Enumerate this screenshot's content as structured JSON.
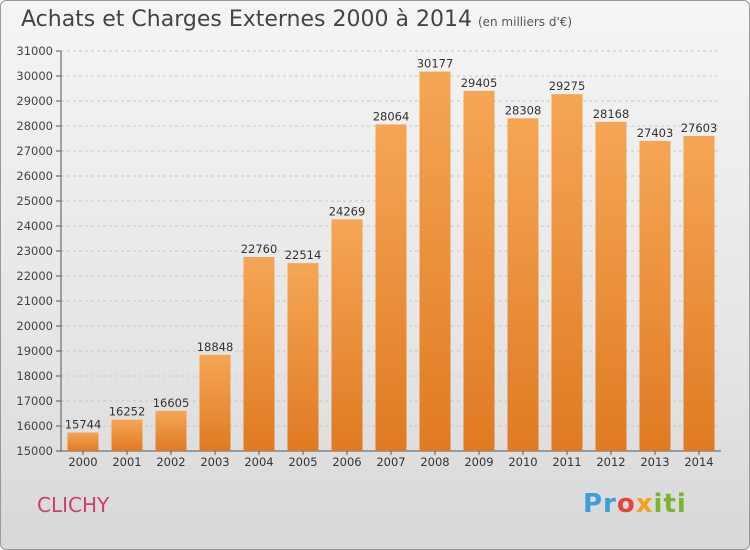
{
  "title": "Achats et Charges Externes 2000 à 2014",
  "subtitle": "(en milliers d'€)",
  "city": "CLICHY",
  "logo": {
    "p1": "Pr",
    "p2": "o",
    "p3": "x",
    "p4": "iti"
  },
  "colors": {
    "bar_light": "#f5a655",
    "bar_dark": "#e07a22",
    "city": "#d23c6a"
  },
  "chart_data": {
    "type": "bar",
    "title": "Achats et Charges Externes 2000 à 2014",
    "subtitle": "(en milliers d'€)",
    "categories": [
      "2000",
      "2001",
      "2002",
      "2003",
      "2004",
      "2005",
      "2006",
      "2007",
      "2008",
      "2009",
      "2010",
      "2011",
      "2012",
      "2013",
      "2014"
    ],
    "values": [
      15744,
      16252,
      16605,
      18848,
      22760,
      22514,
      24269,
      28064,
      30177,
      29405,
      28308,
      29275,
      28168,
      27403,
      27603
    ],
    "ylim": [
      15000,
      31000
    ],
    "yticks": [
      15000,
      16000,
      17000,
      18000,
      19000,
      20000,
      21000,
      22000,
      23000,
      24000,
      25000,
      26000,
      27000,
      28000,
      29000,
      30000,
      31000
    ],
    "grid": true
  }
}
